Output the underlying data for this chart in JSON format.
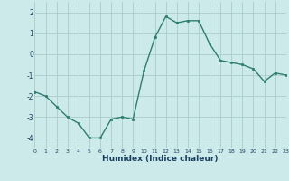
{
  "x": [
    0,
    1,
    2,
    3,
    4,
    5,
    6,
    7,
    8,
    9,
    10,
    11,
    12,
    13,
    14,
    15,
    16,
    17,
    18,
    19,
    20,
    21,
    22,
    23
  ],
  "y": [
    -1.8,
    -2.0,
    -2.5,
    -3.0,
    -3.3,
    -4.0,
    -4.0,
    -3.1,
    -3.0,
    -3.1,
    -0.8,
    0.8,
    1.8,
    1.5,
    1.6,
    1.6,
    0.5,
    -0.3,
    -0.4,
    -0.5,
    -0.7,
    -1.3,
    -0.9,
    -1.0
  ],
  "xlabel": "Humidex (Indice chaleur)",
  "xlim": [
    0,
    23
  ],
  "ylim": [
    -4.5,
    2.5
  ],
  "yticks": [
    -4,
    -3,
    -2,
    -1,
    0,
    1,
    2
  ],
  "xticks": [
    0,
    1,
    2,
    3,
    4,
    5,
    6,
    7,
    8,
    9,
    10,
    11,
    12,
    13,
    14,
    15,
    16,
    17,
    18,
    19,
    20,
    21,
    22,
    23
  ],
  "line_color": "#2e7d6e",
  "marker_color": "#2e7d6e",
  "bg_color": "#cdeaea",
  "grid_color": "#b0d0d0",
  "axis_label_color": "#1a4060",
  "tick_label_color": "#1a4060"
}
